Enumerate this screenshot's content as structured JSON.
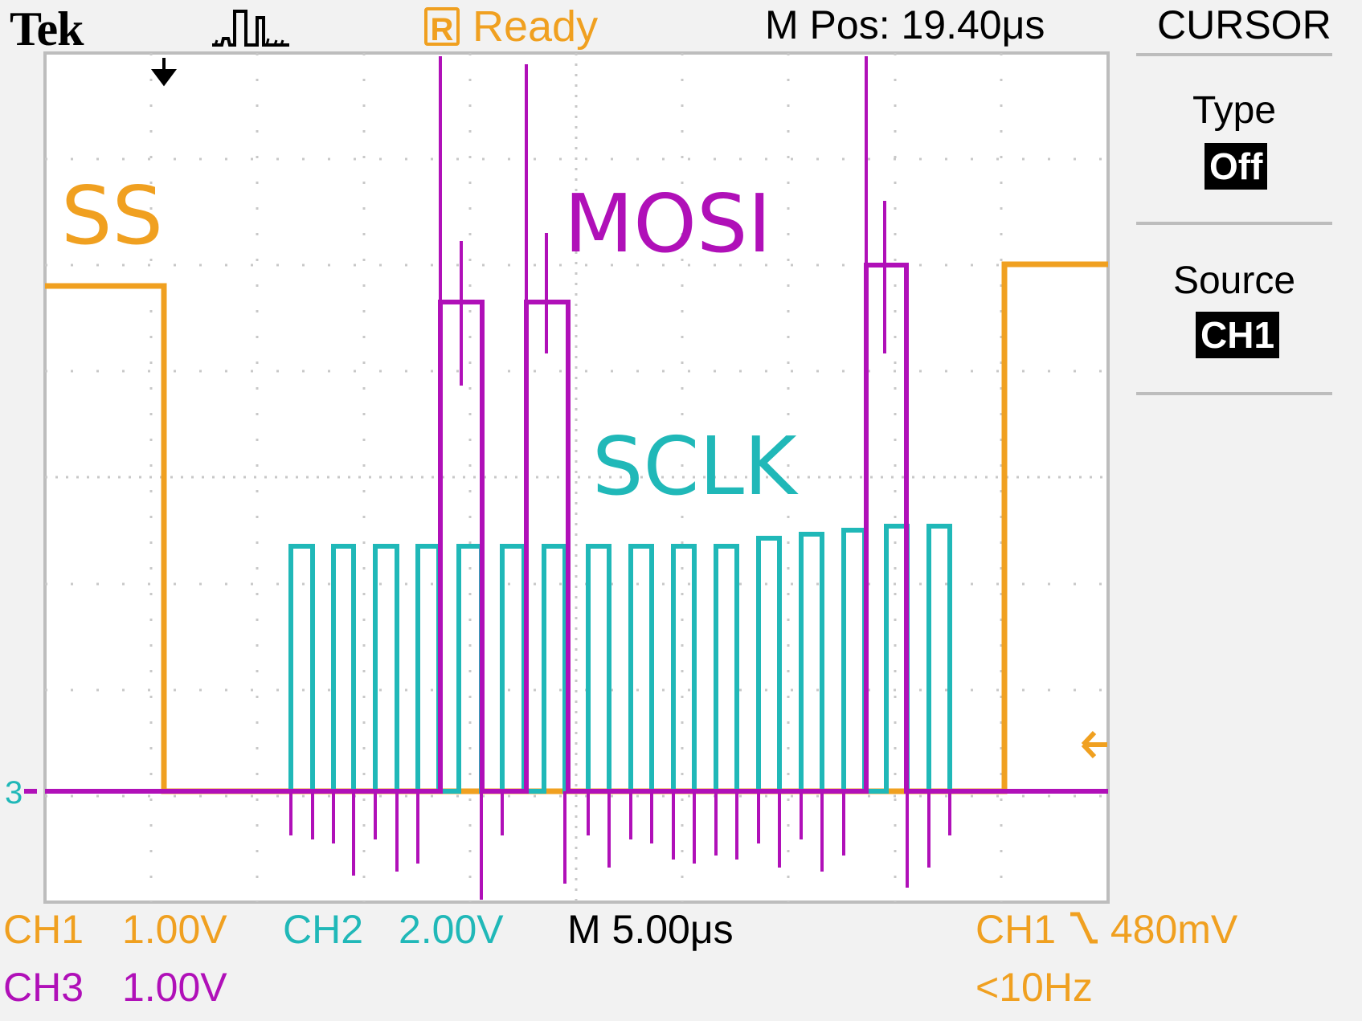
{
  "header": {
    "brand": "Tek",
    "state_icon": "R",
    "state": "Ready",
    "m_pos": "M Pos: 19.40μs",
    "menu_title": "CURSOR"
  },
  "side_menu": {
    "items": [
      {
        "label": "Type",
        "value": "Off"
      },
      {
        "label": "Source",
        "value": "CH1"
      }
    ]
  },
  "signal_labels": {
    "ss": "SS",
    "mosi": "MOSI",
    "sclk": "SCLK"
  },
  "ground_marker": "3",
  "footer": {
    "ch1_name": "CH1",
    "ch1_scale": "1.00V",
    "ch2_name": "CH2",
    "ch2_scale": "2.00V",
    "ch3_name": "CH3",
    "ch3_scale": "1.00V",
    "timebase": "M 5.00μs",
    "trigger_source": "CH1",
    "trigger_slope_icon": "falling-edge-icon",
    "trigger_level": "480mV",
    "trigger_freq": "<10Hz"
  },
  "colors": {
    "ch1": "#f0a020",
    "ch2": "#20b8b8",
    "ch3": "#b010b8"
  }
}
